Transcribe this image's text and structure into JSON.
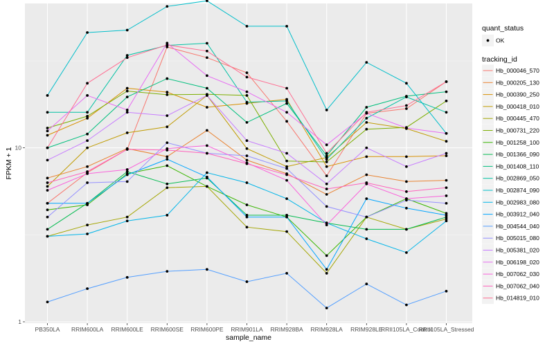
{
  "chart_data": {
    "type": "line",
    "xlabel": "sample_name",
    "ylabel": "FPKM + 1",
    "y_scale": "log10",
    "ylim": [
      1,
      60
    ],
    "y_ticks": [
      1,
      10
    ],
    "grid": true,
    "legend_position": "right",
    "categories": [
      "PB350LA",
      "RRIM600LA",
      "RRIM600LE",
      "RRIM600SE",
      "RRIM600PE",
      "RRIM901LA",
      "RRIM928BA",
      "RRIM928LA",
      "RRIM928LE",
      "RRII105LA_Control",
      "RRII105LA_Stressed"
    ],
    "legends": [
      {
        "title": "quant_status",
        "entries": [
          "OK"
        ]
      },
      {
        "title": "tracking_id"
      }
    ],
    "series": [
      {
        "name": "Hb_000046_570",
        "color": "#F8766D",
        "values": [
          4.8,
          7.2,
          9.8,
          38.0,
          33.0,
          27.0,
          14.2,
          6.9,
          15.8,
          16.8,
          24.0
        ]
      },
      {
        "name": "Hb_000205_130",
        "color": "#EA8331",
        "values": [
          6.7,
          7.8,
          9.9,
          8.9,
          12.6,
          8.5,
          7.1,
          5.4,
          7.0,
          6.4,
          6.5
        ]
      },
      {
        "name": "Hb_000390_250",
        "color": "#D89000",
        "values": [
          11.8,
          14.8,
          22.0,
          20.9,
          17.1,
          18.0,
          19.0,
          7.8,
          8.9,
          8.9,
          9.0
        ]
      },
      {
        "name": "Hb_000418_010",
        "color": "#C09B00",
        "values": [
          6.0,
          10.0,
          12.2,
          13.2,
          20.0,
          9.9,
          7.8,
          8.8,
          14.0,
          12.9,
          10.9
        ]
      },
      {
        "name": "Hb_000445_470",
        "color": "#A3A500",
        "values": [
          3.1,
          3.6,
          4.0,
          5.9,
          6.0,
          3.5,
          3.3,
          1.9,
          4.0,
          3.4,
          3.9
        ]
      },
      {
        "name": "Hb_000731_220",
        "color": "#7CAE00",
        "values": [
          13.0,
          15.2,
          21.2,
          20.2,
          20.3,
          20.0,
          8.4,
          8.3,
          12.8,
          13.1,
          18.6
        ]
      },
      {
        "name": "Hb_001258_100",
        "color": "#39B600",
        "values": [
          4.4,
          4.7,
          7.1,
          7.9,
          6.0,
          4.7,
          4.0,
          2.4,
          4.0,
          5.1,
          4.2
        ]
      },
      {
        "name": "Hb_001366_090",
        "color": "#00BB4E",
        "values": [
          3.4,
          4.8,
          7.3,
          6.2,
          6.7,
          4.1,
          4.1,
          3.7,
          3.4,
          3.4,
          4.0
        ]
      },
      {
        "name": "Hb_001408_110",
        "color": "#00BF7D",
        "values": [
          10.0,
          12.0,
          19.6,
          25.0,
          22.0,
          14.0,
          18.0,
          9.0,
          17.1,
          19.8,
          21.0
        ]
      },
      {
        "name": "Hb_002869_050",
        "color": "#00C1A3",
        "values": [
          16.0,
          16.0,
          34.0,
          38.8,
          39.9,
          18.3,
          18.6,
          8.6,
          14.8,
          19.6,
          16.0
        ]
      },
      {
        "name": "Hb_002874_090",
        "color": "#00BECA",
        "values": [
          20.0,
          46.0,
          47.5,
          65.0,
          70.0,
          50.0,
          50.0,
          16.5,
          31.0,
          23.5,
          12.1
        ]
      },
      {
        "name": "Hb_002983_080",
        "color": "#00B5E9",
        "values": [
          3.1,
          3.2,
          3.8,
          4.1,
          7.2,
          6.3,
          5.1,
          3.7,
          3.0,
          2.5,
          3.8
        ]
      },
      {
        "name": "Hb_003912_040",
        "color": "#00A5FF",
        "values": [
          4.8,
          4.8,
          7.0,
          8.6,
          6.8,
          4.0,
          4.0,
          2.0,
          5.1,
          4.5,
          4.1
        ]
      },
      {
        "name": "Hb_004544_040",
        "color": "#529EFF",
        "values": [
          1.3,
          1.55,
          1.8,
          1.95,
          2.0,
          1.7,
          1.9,
          1.2,
          1.65,
          1.25,
          1.5
        ]
      },
      {
        "name": "Hb_005015_080",
        "color": "#9590FF",
        "values": [
          4.0,
          6.3,
          6.4,
          10.7,
          9.3,
          9.0,
          7.6,
          4.6,
          4.0,
          5.0,
          4.8
        ]
      },
      {
        "name": "Hb_005381_020",
        "color": "#C77CFF",
        "values": [
          8.5,
          11.0,
          16.0,
          15.3,
          20.0,
          11.0,
          9.3,
          6.2,
          10.0,
          7.8,
          9.3
        ]
      },
      {
        "name": "Hb_006198_020",
        "color": "#E76BF3",
        "values": [
          12.5,
          20.0,
          16.5,
          40.0,
          26.0,
          21.0,
          16.0,
          10.4,
          15.8,
          13.0,
          12.1
        ]
      },
      {
        "name": "Hb_007062_030",
        "color": "#FA62DB",
        "values": [
          5.7,
          7.1,
          7.5,
          9.9,
          10.3,
          8.2,
          6.5,
          3.6,
          6.2,
          5.1,
          5.3
        ]
      },
      {
        "name": "Hb_007062_040",
        "color": "#FF62BC",
        "values": [
          6.3,
          7.3,
          9.8,
          9.7,
          9.3,
          8.1,
          7.0,
          5.8,
          6.3,
          5.6,
          5.9
        ]
      },
      {
        "name": "Hb_014819_010",
        "color": "#FF6C91",
        "values": [
          10.0,
          23.5,
          33.0,
          39.0,
          36.0,
          25.5,
          22.0,
          9.3,
          16.0,
          17.5,
          24.0
        ]
      }
    ]
  }
}
